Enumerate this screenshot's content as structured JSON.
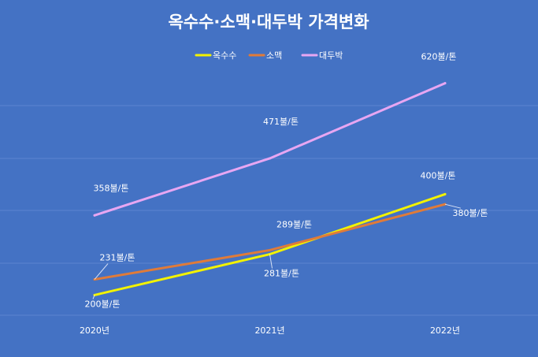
{
  "chart_data": {
    "type": "line",
    "title": "옥수수·소맥·대두박  가격변화",
    "categories": [
      "2020년",
      "2021년",
      "2022년"
    ],
    "series": [
      {
        "name": "옥수수",
        "color": "#f2f200",
        "values": [
          200,
          281,
          400
        ],
        "data_labels": [
          "200불/톤",
          "281불/톤",
          "400불/톤"
        ]
      },
      {
        "name": "소맥",
        "color": "#e07b39",
        "values": [
          231,
          289,
          380
        ],
        "data_labels": [
          "231불/톤",
          "289불/톤",
          "380불/톤"
        ]
      },
      {
        "name": "대두박",
        "color": "#e7a6f2",
        "values": [
          358,
          471,
          620
        ],
        "data_labels": [
          "358불/톤",
          "471불/톤",
          "620불/톤"
        ]
      }
    ],
    "ylim": [
      160,
      660
    ],
    "grid": true,
    "legend_position": "top-center"
  },
  "colors": {
    "background": "#4472c4",
    "gridline": "#5b84cf",
    "text": "#ffffff"
  }
}
